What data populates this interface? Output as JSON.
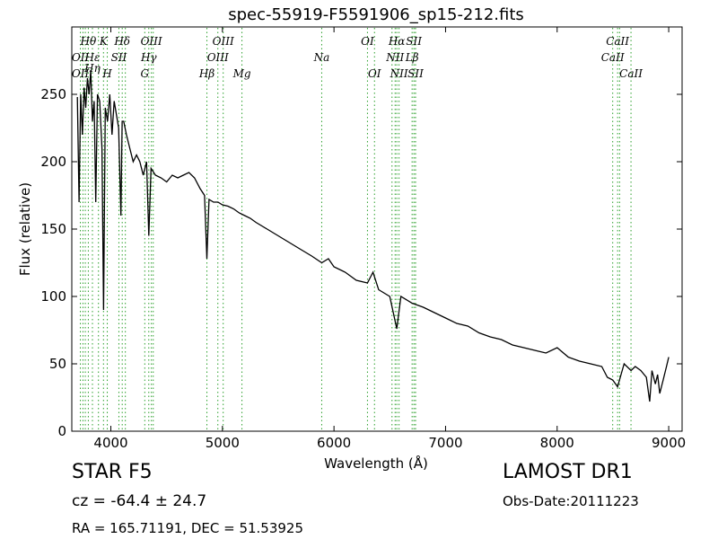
{
  "chart_data": {
    "type": "line",
    "title": "spec-55919-F5591906_sp15-212.fits",
    "xlabel": "Wavelength (Å)",
    "ylabel": "Flux (relative)",
    "xlim": [
      3650,
      9120
    ],
    "ylim": [
      0,
      300
    ],
    "xticks": [
      4000,
      5000,
      6000,
      7000,
      8000,
      9000
    ],
    "yticks": [
      0,
      50,
      100,
      150,
      200,
      250
    ],
    "grid": false,
    "line_color": "#000000",
    "marker_color": "#2ca02c",
    "series": [
      {
        "x": [
          3700,
          3715,
          3730,
          3745,
          3760,
          3775,
          3790,
          3805,
          3820,
          3835,
          3850,
          3865,
          3880,
          3900,
          3920,
          3935,
          3950,
          3970,
          3990,
          4010,
          4030,
          4050,
          4070,
          4090,
          4101,
          4115,
          4140,
          4170,
          4200,
          4230,
          4260,
          4290,
          4320,
          4340,
          4360,
          4400,
          4450,
          4500,
          4550,
          4600,
          4650,
          4700,
          4750,
          4800,
          4840,
          4861,
          4880,
          4920,
          4960,
          5000,
          5050,
          5100,
          5150,
          5200,
          5250,
          5300,
          5400,
          5500,
          5600,
          5700,
          5800,
          5890,
          5950,
          6000,
          6100,
          6200,
          6300,
          6350,
          6400,
          6500,
          6563,
          6600,
          6700,
          6800,
          6900,
          7000,
          7100,
          7200,
          7300,
          7400,
          7500,
          7600,
          7700,
          7800,
          7900,
          8000,
          8100,
          8200,
          8300,
          8400,
          8450,
          8498,
          8542,
          8600,
          8662,
          8700,
          8750,
          8800,
          8830,
          8850,
          8880,
          8900,
          8920,
          8950,
          8980,
          9000
        ],
        "y": [
          248,
          170,
          250,
          220,
          255,
          240,
          262,
          250,
          268,
          230,
          245,
          170,
          250,
          245,
          210,
          90,
          240,
          230,
          250,
          220,
          245,
          235,
          225,
          160,
          230,
          230,
          220,
          210,
          200,
          205,
          200,
          190,
          200,
          145,
          195,
          190,
          188,
          185,
          190,
          188,
          190,
          192,
          188,
          180,
          175,
          128,
          172,
          170,
          170,
          168,
          167,
          165,
          162,
          160,
          158,
          155,
          150,
          145,
          140,
          135,
          130,
          125,
          128,
          122,
          118,
          112,
          110,
          118,
          105,
          100,
          76,
          100,
          95,
          92,
          88,
          84,
          80,
          78,
          73,
          70,
          68,
          64,
          62,
          60,
          58,
          62,
          55,
          52,
          50,
          48,
          40,
          38,
          33,
          50,
          45,
          48,
          45,
          40,
          22,
          45,
          35,
          42,
          28,
          38,
          48,
          55
        ]
      }
    ],
    "line_markers": {
      "top_row": [
        {
          "label": "Hθ",
          "x": 3798
        },
        {
          "label": "K",
          "x": 3934
        },
        {
          "label": "Hδ",
          "x": 4102
        },
        {
          "label": "OIII",
          "x": 4363
        },
        {
          "label": "OIII",
          "x": 5007
        },
        {
          "label": "OI",
          "x": 6300
        },
        {
          "label": "Hα",
          "x": 6563
        },
        {
          "label": "SII",
          "x": 6716
        },
        {
          "label": "CaII",
          "x": 8542
        }
      ],
      "middle_row": [
        {
          "label": "OII",
          "x": 3727
        },
        {
          "label": "Hε",
          "x": 3835
        },
        {
          "label": "SII",
          "x": 4072
        },
        {
          "label": "Hγ",
          "x": 4340
        },
        {
          "label": "OIII",
          "x": 4959
        },
        {
          "label": "Na",
          "x": 5890
        },
        {
          "label": "NII",
          "x": 6548
        },
        {
          "label": "Lβ",
          "x": 6700
        },
        {
          "label": "CaII",
          "x": 8498
        }
      ],
      "third_row": [
        {
          "label": "Hη",
          "x": 3835
        }
      ],
      "bottom_row": [
        {
          "label": "OII",
          "x": 3727
        },
        {
          "label": "H",
          "x": 3968
        },
        {
          "label": "G",
          "x": 4304
        },
        {
          "label": "Hβ",
          "x": 4861
        },
        {
          "label": "Mg",
          "x": 5175
        },
        {
          "label": "OI",
          "x": 6363
        },
        {
          "label": "NII",
          "x": 6583
        },
        {
          "label": "SII",
          "x": 6731
        },
        {
          "label": "CaII",
          "x": 8662
        }
      ],
      "extra_dotted_lines": [
        3750,
        3771,
        3889,
        4130,
        4380,
        6520,
        6730,
        8560
      ]
    }
  },
  "footer": {
    "object_class": "STAR   F5",
    "survey": "LAMOST DR1",
    "redshift": "cz = -64.4 ± 24.7",
    "obs_date": "Obs-Date:20111223",
    "coords": "RA = 165.71191, DEC = 51.53925"
  }
}
